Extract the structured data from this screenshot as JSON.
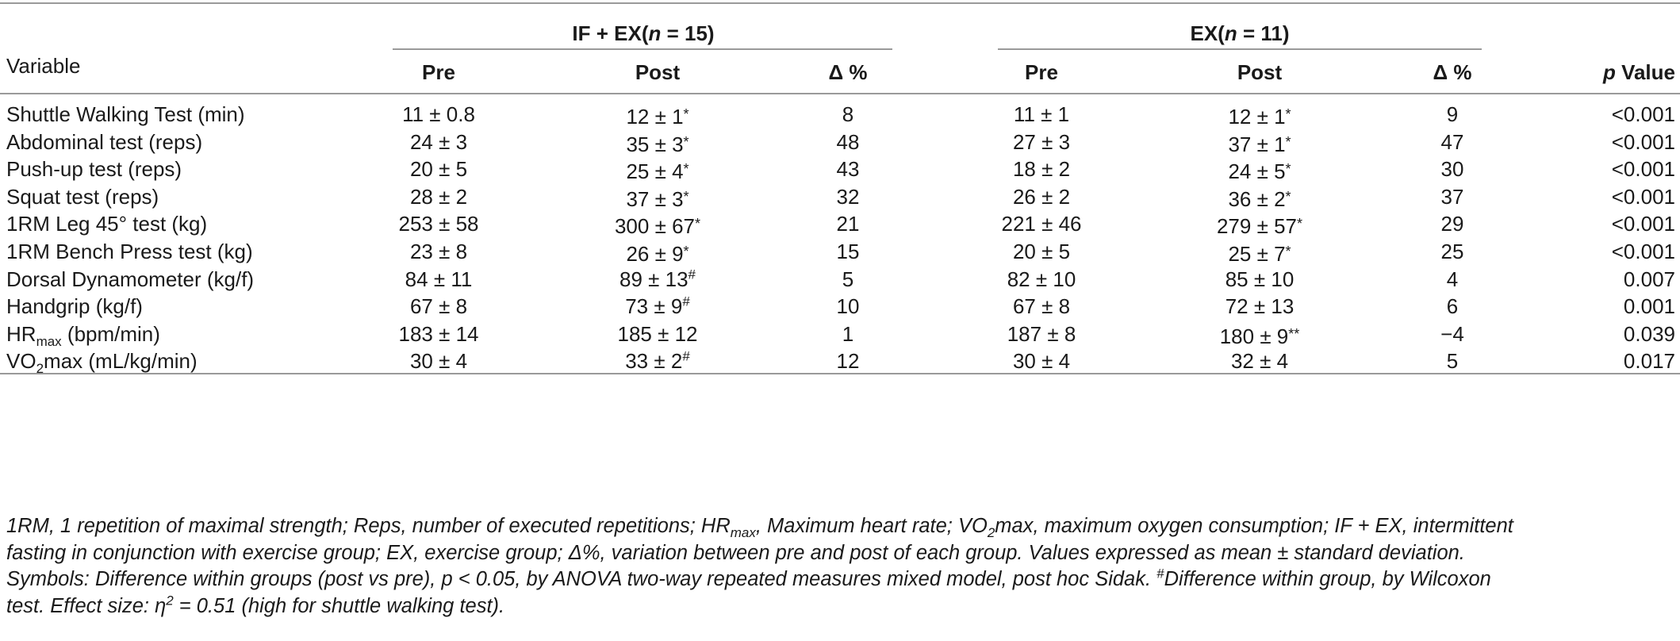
{
  "table": {
    "group1_title": "IF + EX(",
    "group1_n": "n",
    "group1_eq": " = 15)",
    "group2_title": "EX(",
    "group2_n": "n",
    "group2_eq": " = 11)",
    "headers": {
      "variable": "Variable",
      "pre1": "Pre",
      "post1": "Post",
      "delta1": "Δ %",
      "pre2": "Pre",
      "post2": "Post",
      "delta2": "Δ %",
      "p_italic": "p",
      "p_rest": " Value"
    },
    "rows": [
      {
        "variable": "Shuttle Walking Test (min)",
        "pre1": "11 ± 0.8",
        "post1": "12 ± 1",
        "post1_mark": "*",
        "d1": "8",
        "pre2": "11 ± 1",
        "post2": "12 ± 1",
        "post2_mark": "*",
        "d2": "9",
        "p": "<0.001"
      },
      {
        "variable": "Abdominal test (reps)",
        "pre1": "24 ± 3",
        "post1": "35 ± 3",
        "post1_mark": "*",
        "d1": "48",
        "pre2": "27 ± 3",
        "post2": "37 ± 1",
        "post2_mark": "*",
        "d2": "47",
        "p": "<0.001"
      },
      {
        "variable": "Push-up test (reps)",
        "pre1": "20 ± 5",
        "post1": "25 ± 4",
        "post1_mark": "*",
        "d1": "43",
        "pre2": "18 ± 2",
        "post2": "24 ± 5",
        "post2_mark": "*",
        "d2": "30",
        "p": "<0.001"
      },
      {
        "variable": "Squat test (reps)",
        "pre1": "28 ± 2",
        "post1": "37 ± 3",
        "post1_mark": "*",
        "d1": "32",
        "pre2": "26 ± 2",
        "post2": "36 ± 2",
        "post2_mark": "*",
        "d2": "37",
        "p": "<0.001"
      },
      {
        "variable": "1RM Leg 45° test (kg)",
        "pre1": "253 ± 58",
        "post1": "300 ± 67",
        "post1_mark": "*",
        "d1": "21",
        "pre2": "221 ± 46",
        "post2": "279 ± 57",
        "post2_mark": "*",
        "d2": "29",
        "p": "<0.001"
      },
      {
        "variable": "1RM Bench Press test (kg)",
        "pre1": "23 ± 8",
        "post1": "26 ± 9",
        "post1_mark": "*",
        "d1": "15",
        "pre2": "20 ± 5",
        "post2": "25 ± 7",
        "post2_mark": "*",
        "d2": "25",
        "p": "<0.001"
      },
      {
        "variable": "Dorsal Dynamometer (kg/f)",
        "pre1": "84 ± 11",
        "post1": "89 ± 13",
        "post1_sup": "#",
        "d1": "5",
        "pre2": "82 ± 10",
        "post2": "85 ± 10",
        "d2": "4",
        "p": "0.007"
      },
      {
        "variable": "Handgrip (kg/f)",
        "pre1": "67 ± 8",
        "post1": "73 ± 9",
        "post1_sup": "#",
        "d1": "10",
        "pre2": "67 ± 8",
        "post2": "72 ± 13",
        "d2": "6",
        "p": "0.001"
      },
      {
        "var_main": "HR",
        "var_sub": "max",
        "var_rest": " (bpm/min)",
        "pre1": "183 ± 14",
        "post1": "185 ± 12",
        "d1": "1",
        "pre2": "187 ± 8",
        "post2": "180 ± 9",
        "post2_mark": "**",
        "d2": "−4",
        "p": "0.039"
      },
      {
        "var_main": "VO",
        "var_sub": "2",
        "var_rest": "max (mL/kg/min)",
        "pre1": "30 ± 4",
        "post1": "33 ± 2",
        "post1_sup": "#",
        "d1": "12",
        "pre2": "30 ± 4",
        "post2": "32 ± 4",
        "d2": "5",
        "p": "0.017"
      }
    ]
  },
  "footnote": {
    "line1_a": "1RM, 1 repetition of maximal strength; Reps, number of executed repetitions; HR",
    "line1_sub": "max",
    "line1_b": ", Maximum heart rate; VO",
    "line1_sub2": "2",
    "line1_c": "max, maximum oxygen consumption; IF + EX, intermittent",
    "line2": "fasting in conjunction with exercise group; EX, exercise group; Δ%, variation between pre and post of each group. Values expressed as mean ± standard deviation.",
    "line3_a": "Symbols: Difference within groups (post vs pre), p < 0.05, by ANOVA two-way repeated measures mixed model, post hoc Sidak. ",
    "line3_sup": "#",
    "line3_b": "Difference within group, by Wilcoxon",
    "line4_a": "test. Effect size: η",
    "line4_sup": "2",
    "line4_b": " = 0.51 (high for shuttle walking test)."
  }
}
